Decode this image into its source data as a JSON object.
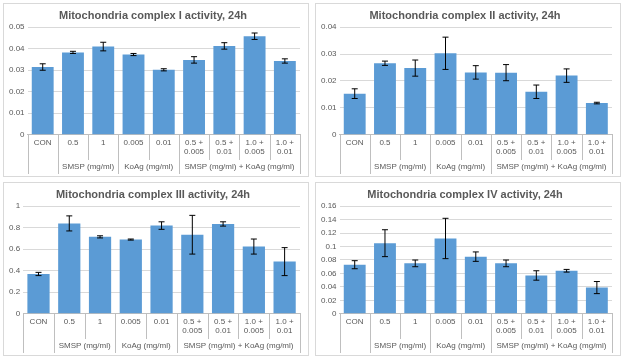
{
  "chart_data": [
    {
      "type": "bar",
      "title": "Mitochondria complex I activity, 24h",
      "categories": [
        "CON",
        "0.5",
        "1",
        "0.005",
        "0.01",
        [
          "0.5 +",
          "0.005"
        ],
        [
          "0.5 +",
          "0.01"
        ],
        [
          "1.0 +",
          "0.005"
        ],
        [
          "1.0 +",
          "0.01"
        ]
      ],
      "groups": [
        null,
        "SMSP (mg/ml)",
        "SMSP (mg/ml)",
        "KoAg (mg/ml)",
        "KoAg (mg/ml)",
        "SMSP (mg/ml) + KoAg (mg/ml)",
        "SMSP (mg/ml) + KoAg (mg/ml)",
        "SMSP (mg/ml) + KoAg (mg/ml)",
        "SMSP (mg/ml) + KoAg (mg/ml)"
      ],
      "values": [
        0.0315,
        0.0383,
        0.041,
        0.0373,
        0.0302,
        0.0348,
        0.0413,
        0.0458,
        0.0343
      ],
      "errors": [
        0.0015,
        0.0005,
        0.002,
        0.0005,
        0.0005,
        0.0015,
        0.0015,
        0.0015,
        0.001
      ],
      "color": "#5b9bd5",
      "ylim": [
        0,
        0.05
      ],
      "yticks": [
        0,
        0.01,
        0.02,
        0.03,
        0.04,
        0.05
      ],
      "grid": true
    },
    {
      "type": "bar",
      "title": "Mitochondria complex II activity, 24h",
      "categories": [
        "CON",
        "0.5",
        "1",
        "0.005",
        "0.01",
        [
          "0.5 +",
          "0.005"
        ],
        [
          "0.5 +",
          "0.01"
        ],
        [
          "1.0 +",
          "0.005"
        ],
        [
          "1.0 +",
          "0.01"
        ]
      ],
      "groups": [
        null,
        "SMSP (mg/ml)",
        "SMSP (mg/ml)",
        "KoAg (mg/ml)",
        "KoAg (mg/ml)",
        "SMSP (mg/ml) + KoAg (mg/ml)",
        "SMSP (mg/ml) + KoAg (mg/ml)",
        "SMSP (mg/ml) + KoAg (mg/ml)",
        "SMSP (mg/ml) + KoAg (mg/ml)"
      ],
      "values": [
        0.0153,
        0.0266,
        0.0248,
        0.0303,
        0.0232,
        0.0231,
        0.016,
        0.022,
        0.0118
      ],
      "errors": [
        0.0018,
        0.0008,
        0.003,
        0.006,
        0.0025,
        0.003,
        0.0025,
        0.0025,
        0.0003
      ],
      "color": "#5b9bd5",
      "ylim": [
        0,
        0.04
      ],
      "yticks": [
        0,
        0.01,
        0.02,
        0.03,
        0.04
      ],
      "grid": true
    },
    {
      "type": "bar",
      "title": "Mitochondria complex III activity, 24h",
      "categories": [
        "CON",
        "0.5",
        "1",
        "0.005",
        "0.01",
        [
          "0.5 +",
          "0.005"
        ],
        [
          "0.5 +",
          "0.01"
        ],
        [
          "1.0 +",
          "0.005"
        ],
        [
          "1.0 +",
          "0.01"
        ]
      ],
      "groups": [
        null,
        "SMSP (mg/ml)",
        "SMSP (mg/ml)",
        "KoAg (mg/ml)",
        "KoAg (mg/ml)",
        "SMSP (mg/ml) + KoAg (mg/ml)",
        "SMSP (mg/ml) + KoAg (mg/ml)",
        "SMSP (mg/ml) + KoAg (mg/ml)",
        "SMSP (mg/ml) + KoAg (mg/ml)"
      ],
      "values": [
        0.37,
        0.84,
        0.715,
        0.69,
        0.82,
        0.735,
        0.835,
        0.625,
        0.485
      ],
      "errors": [
        0.015,
        0.07,
        0.01,
        0.005,
        0.035,
        0.18,
        0.02,
        0.07,
        0.13
      ],
      "color": "#5b9bd5",
      "ylim": [
        0,
        1
      ],
      "yticks": [
        0,
        0.2,
        0.4,
        0.6,
        0.8,
        1
      ],
      "grid": true
    },
    {
      "type": "bar",
      "title": "Mitochondria complex IV activity, 24h",
      "categories": [
        "CON",
        "0.5",
        "1",
        "0.005",
        "0.01",
        [
          "0.5 +",
          "0.005"
        ],
        [
          "0.5 +",
          "0.01"
        ],
        [
          "1.0 +",
          "0.005"
        ],
        [
          "1.0 +",
          "0.01"
        ]
      ],
      "groups": [
        null,
        "SMSP (mg/ml)",
        "SMSP (mg/ml)",
        "KoAg (mg/ml)",
        "KoAg (mg/ml)",
        "SMSP (mg/ml) + KoAg (mg/ml)",
        "SMSP (mg/ml) + KoAg (mg/ml)",
        "SMSP (mg/ml) + KoAg (mg/ml)",
        "SMSP (mg/ml) + KoAg (mg/ml)"
      ],
      "values": [
        0.073,
        0.105,
        0.075,
        0.112,
        0.085,
        0.075,
        0.057,
        0.064,
        0.039
      ],
      "errors": [
        0.006,
        0.02,
        0.005,
        0.03,
        0.007,
        0.005,
        0.007,
        0.002,
        0.009
      ],
      "color": "#5b9bd5",
      "ylim": [
        0,
        0.16
      ],
      "yticks": [
        0,
        0.02,
        0.04,
        0.06,
        0.08,
        0.1,
        0.12,
        0.14,
        0.16
      ],
      "grid": true
    }
  ]
}
